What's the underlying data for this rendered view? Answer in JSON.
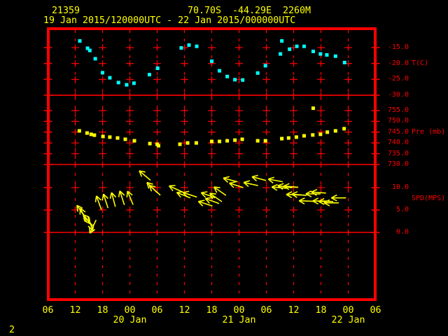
{
  "colors": {
    "background": "#000000",
    "axis_red": "#ff0000",
    "data_yellow": "#ffff00",
    "data_cyan": "#00ffff"
  },
  "header": {
    "station_id": "21359",
    "latitude": "70.70S",
    "longitude": "-44.29E",
    "elevation": "2260M",
    "period": "19 Jan 2015/120000UTC - 22 Jan 2015/000000UTC"
  },
  "footer": {
    "page_number": "2"
  },
  "time_axis": {
    "start": "19 Jan 2015 06UTC",
    "end": "22 Jan 2015 06UTC",
    "span_hours": 72,
    "tick_interval_hours": 6,
    "tick_labels": [
      "06",
      "12",
      "18",
      "00",
      "06",
      "12",
      "18",
      "00",
      "06",
      "12",
      "18",
      "00",
      "06"
    ],
    "day_labels": [
      {
        "label": "20 Jan",
        "t": 18
      },
      {
        "label": "21 Jan",
        "t": 42
      },
      {
        "label": "22 Jan",
        "t": 66
      }
    ]
  },
  "panels": [
    {
      "id": "temperature",
      "unit_label": "T(C)",
      "tick_labels": [
        "-15.0",
        "-20.0",
        "-25.0",
        "-30.0"
      ],
      "tick_values": [
        -15,
        -20,
        -25,
        -30
      ]
    },
    {
      "id": "pressure",
      "unit_label": "Pre (mb)",
      "tick_labels": [
        "755.0",
        "750.0",
        "745.0",
        "740.0",
        "735.0",
        "730.0"
      ],
      "tick_values": [
        755,
        750,
        745,
        740,
        735,
        730
      ]
    },
    {
      "id": "wind_speed",
      "unit_label": "SPD(MPS)",
      "tick_labels": [
        "10.0",
        "5.0",
        "0.0"
      ],
      "tick_values": [
        10,
        5,
        0
      ]
    }
  ],
  "chart_data": [
    {
      "type": "scatter",
      "name": "temperature",
      "ylabel": "T(C)",
      "marker": "square",
      "color": "#00ffff",
      "x_unit": "hours after 19 Jan 2015 06:00 UTC",
      "ylim": [
        -30,
        -9.5
      ],
      "points": [
        [
          7.0,
          -12.9
        ],
        [
          8.7,
          -15.2
        ],
        [
          9.2,
          -15.9
        ],
        [
          10.4,
          -18.5
        ],
        [
          12.0,
          -22.9
        ],
        [
          13.6,
          -24.5
        ],
        [
          15.5,
          -26.0
        ],
        [
          17.3,
          -26.7
        ],
        [
          18.9,
          -26.2
        ],
        [
          22.3,
          -23.5
        ],
        [
          24.1,
          -21.5
        ],
        [
          29.3,
          -15.1
        ],
        [
          31.0,
          -14.2
        ],
        [
          32.7,
          -14.6
        ],
        [
          36.0,
          -19.3
        ],
        [
          37.7,
          -22.3
        ],
        [
          39.4,
          -24.1
        ],
        [
          41.1,
          -25.1
        ],
        [
          42.8,
          -25.2
        ],
        [
          46.1,
          -23.0
        ],
        [
          47.8,
          -20.7
        ],
        [
          51.1,
          -17.0
        ],
        [
          51.4,
          -12.9
        ],
        [
          53.1,
          -15.5
        ],
        [
          54.7,
          -14.6
        ],
        [
          56.3,
          -14.6
        ],
        [
          58.3,
          -16.2
        ],
        [
          59.9,
          -17.0
        ],
        [
          61.3,
          -17.3
        ],
        [
          63.2,
          -17.7
        ],
        [
          65.2,
          -19.7
        ]
      ]
    },
    {
      "type": "scatter",
      "name": "pressure",
      "ylabel": "Pre (mb)",
      "marker": "square",
      "color": "#ffff00",
      "x_unit": "hours after 19 Jan 2015 06:00 UTC",
      "ylim": [
        730,
        762
      ],
      "points": [
        [
          6.9,
          745.6
        ],
        [
          8.6,
          744.6
        ],
        [
          9.5,
          744.0
        ],
        [
          10.2,
          743.6
        ],
        [
          12.1,
          743.0
        ],
        [
          13.6,
          742.7
        ],
        [
          15.3,
          742.3
        ],
        [
          17.0,
          741.7
        ],
        [
          19.0,
          741.0
        ],
        [
          22.4,
          739.7
        ],
        [
          24.0,
          739.4
        ],
        [
          24.3,
          738.7
        ],
        [
          29.0,
          739.4
        ],
        [
          30.7,
          740.0
        ],
        [
          32.6,
          740.0
        ],
        [
          36.0,
          740.7
        ],
        [
          37.7,
          740.7
        ],
        [
          39.4,
          741.0
        ],
        [
          41.1,
          741.3
        ],
        [
          42.7,
          741.7
        ],
        [
          46.1,
          741.0
        ],
        [
          47.8,
          741.0
        ],
        [
          51.4,
          742.0
        ],
        [
          52.9,
          742.3
        ],
        [
          54.6,
          742.7
        ],
        [
          56.3,
          743.3
        ],
        [
          58.2,
          743.7
        ],
        [
          58.3,
          756.1
        ],
        [
          59.9,
          744.0
        ],
        [
          61.4,
          745.0
        ],
        [
          63.2,
          745.6
        ],
        [
          65.1,
          746.6
        ]
      ]
    },
    {
      "type": "wind_vector",
      "name": "wind",
      "ylabel": "SPD(MPS)",
      "color": "#ffff00",
      "x_unit": "hours after 19 Jan 2015 06:00 UTC",
      "ylim": [
        0,
        15
      ],
      "dir_convention": "arrow pointing direction, degrees clockwise from screen-up",
      "arrows": [
        [
          7.3,
          4.7,
          -35
        ],
        [
          7.8,
          3.9,
          -25
        ],
        [
          8.3,
          3.3,
          145
        ],
        [
          8.8,
          2.7,
          -40
        ],
        [
          9.3,
          2.0,
          160
        ],
        [
          9.9,
          1.3,
          205
        ],
        [
          11.2,
          6.6,
          -20
        ],
        [
          12.7,
          7.0,
          -18
        ],
        [
          14.4,
          7.3,
          -15
        ],
        [
          16.3,
          7.7,
          -18
        ],
        [
          18.1,
          7.7,
          -22
        ],
        [
          21.3,
          12.7,
          -50
        ],
        [
          22.9,
          10.0,
          -45
        ],
        [
          23.5,
          9.4,
          -48
        ],
        [
          28.1,
          9.7,
          -65
        ],
        [
          29.8,
          8.3,
          -68
        ],
        [
          31.2,
          8.4,
          -72
        ],
        [
          34.6,
          6.4,
          -72
        ],
        [
          35.2,
          8.3,
          -70
        ],
        [
          36.1,
          7.0,
          -70
        ],
        [
          36.9,
          7.8,
          -55
        ],
        [
          37.8,
          9.2,
          -55
        ],
        [
          40.1,
          11.7,
          -75
        ],
        [
          41.4,
          10.5,
          -72
        ],
        [
          44.6,
          10.8,
          -78
        ],
        [
          46.4,
          12.0,
          -75
        ],
        [
          50.0,
          11.6,
          -80
        ],
        [
          50.8,
          10.0,
          -85
        ],
        [
          52.1,
          10.2,
          -82
        ],
        [
          53.4,
          10.2,
          -85
        ],
        [
          54.0,
          8.4,
          -88
        ],
        [
          55.2,
          8.4,
          -85
        ],
        [
          56.8,
          7.0,
          -88
        ],
        [
          58.3,
          8.6,
          -90
        ],
        [
          59.5,
          8.9,
          -86
        ],
        [
          59.8,
          7.0,
          -90
        ],
        [
          61.1,
          6.9,
          -90
        ],
        [
          62.3,
          6.6,
          -90
        ],
        [
          63.9,
          7.7,
          -90
        ]
      ]
    }
  ]
}
